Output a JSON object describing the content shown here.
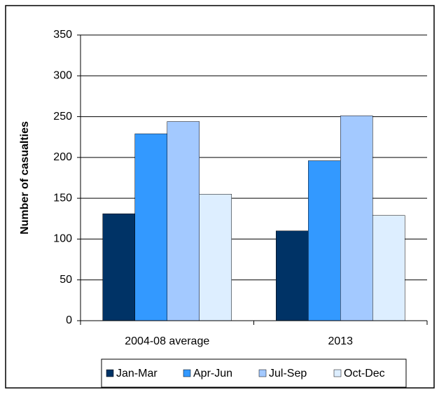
{
  "chart_data": {
    "type": "bar",
    "ylabel": "Number of casualties",
    "categories": [
      "2004-08 average",
      "2013"
    ],
    "series": [
      {
        "name": "Jan-Mar",
        "color": "#003366",
        "values": [
          131,
          110
        ]
      },
      {
        "name": "Apr-Jun",
        "color": "#3399ff",
        "values": [
          229,
          196
        ]
      },
      {
        "name": "Jul-Sep",
        "color": "#a3c9ff",
        "values": [
          244,
          251
        ]
      },
      {
        "name": "Oct-Dec",
        "color": "#ddeeff",
        "values": [
          155,
          129
        ]
      }
    ],
    "ylim": [
      0,
      350
    ],
    "yticks": [
      0,
      50,
      100,
      150,
      200,
      250,
      300,
      350
    ],
    "grid": true,
    "legend": "bottom"
  }
}
